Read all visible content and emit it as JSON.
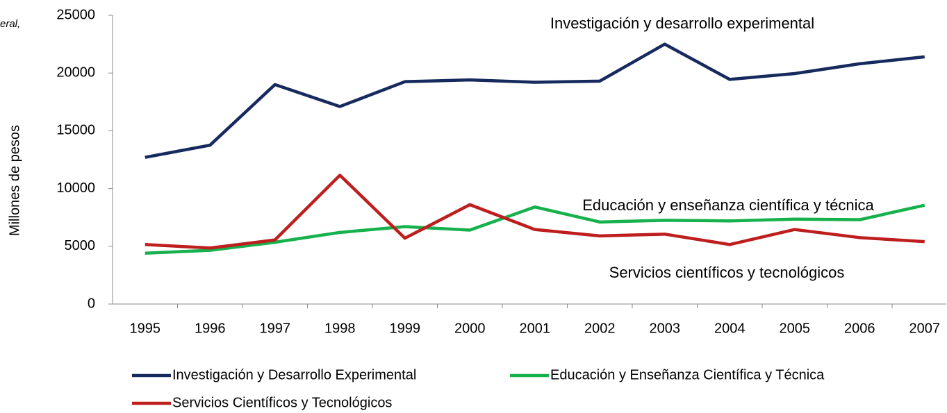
{
  "chart_data": {
    "type": "line",
    "fragment": "eral,",
    "ylabel": "Millones de pesos",
    "categories": [
      "1995",
      "1996",
      "1997",
      "1998",
      "1999",
      "2000",
      "2001",
      "2002",
      "2003",
      "2004",
      "2005",
      "2006",
      "2007"
    ],
    "series": [
      {
        "name": "Investigación y Desarrollo Experimental",
        "color": "#172a5e",
        "values": [
          12700,
          13750,
          19000,
          17100,
          19250,
          19400,
          19200,
          19300,
          22500,
          19450,
          19950,
          20800,
          21400
        ]
      },
      {
        "name": "Educación y Enseñanza Científica  y Técnica",
        "color": "#16b14c",
        "values": [
          4400,
          4650,
          5350,
          6200,
          6700,
          6400,
          8400,
          7100,
          7250,
          7200,
          7350,
          7300,
          8550
        ]
      },
      {
        "name": "Servicios Científicos y Tecnológicos",
        "color": "#be1e1e",
        "values": [
          5150,
          4850,
          5550,
          11150,
          5700,
          8600,
          6450,
          5900,
          6050,
          5150,
          6450,
          5750,
          5400
        ]
      }
    ],
    "annotations": [
      "Investigación y desarrollo experimental",
      "Educación y enseñanza científica y técnica",
      "Servicios científicos y tecnológicos"
    ],
    "ylim": [
      0,
      25000
    ],
    "yticks": [
      0,
      5000,
      10000,
      15000,
      20000,
      25000
    ],
    "grid": false
  }
}
